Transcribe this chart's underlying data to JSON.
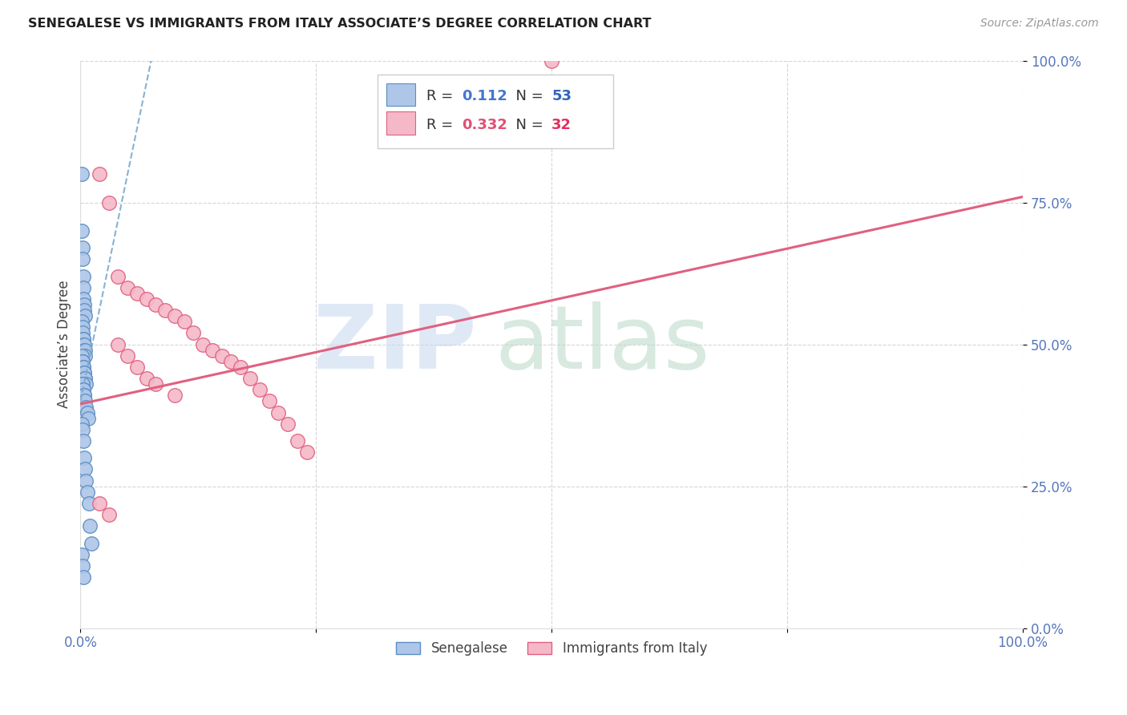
{
  "title": "SENEGALESE VS IMMIGRANTS FROM ITALY ASSOCIATE’S DEGREE CORRELATION CHART",
  "source": "Source: ZipAtlas.com",
  "ylabel": "Associate’s Degree",
  "legend_label1": "Senegalese",
  "legend_label2": "Immigrants from Italy",
  "R1": "0.112",
  "N1": "53",
  "R2": "0.332",
  "N2": "32",
  "color1_fill": "#aec6e8",
  "color1_edge": "#5b8ec4",
  "color2_fill": "#f5b8c8",
  "color2_edge": "#e06080",
  "line1_color": "#7aaad0",
  "line2_color": "#e06080",
  "senegalese_x": [
    0.001,
    0.001,
    0.002,
    0.002,
    0.003,
    0.003,
    0.003,
    0.004,
    0.004,
    0.005,
    0.001,
    0.002,
    0.002,
    0.003,
    0.003,
    0.003,
    0.004,
    0.004,
    0.005,
    0.005,
    0.001,
    0.002,
    0.002,
    0.003,
    0.003,
    0.004,
    0.004,
    0.005,
    0.005,
    0.006,
    0.001,
    0.002,
    0.003,
    0.003,
    0.004,
    0.004,
    0.005,
    0.006,
    0.007,
    0.008,
    0.001,
    0.002,
    0.003,
    0.004,
    0.005,
    0.006,
    0.007,
    0.009,
    0.01,
    0.012,
    0.001,
    0.002,
    0.003
  ],
  "senegalese_y": [
    0.8,
    0.7,
    0.67,
    0.65,
    0.62,
    0.6,
    0.58,
    0.57,
    0.56,
    0.55,
    0.54,
    0.53,
    0.52,
    0.51,
    0.51,
    0.5,
    0.5,
    0.49,
    0.49,
    0.48,
    0.48,
    0.47,
    0.47,
    0.46,
    0.46,
    0.45,
    0.45,
    0.44,
    0.44,
    0.43,
    0.43,
    0.43,
    0.42,
    0.42,
    0.41,
    0.41,
    0.4,
    0.39,
    0.38,
    0.37,
    0.36,
    0.35,
    0.33,
    0.3,
    0.28,
    0.26,
    0.24,
    0.22,
    0.18,
    0.15,
    0.13,
    0.11,
    0.09
  ],
  "italy_x": [
    0.02,
    0.03,
    0.04,
    0.05,
    0.06,
    0.07,
    0.08,
    0.09,
    0.1,
    0.11,
    0.12,
    0.13,
    0.14,
    0.15,
    0.16,
    0.17,
    0.18,
    0.19,
    0.2,
    0.21,
    0.22,
    0.23,
    0.24,
    0.04,
    0.05,
    0.06,
    0.07,
    0.08,
    0.1,
    0.5,
    0.02,
    0.03
  ],
  "italy_y": [
    0.8,
    0.75,
    0.62,
    0.6,
    0.59,
    0.58,
    0.57,
    0.56,
    0.55,
    0.54,
    0.52,
    0.5,
    0.49,
    0.48,
    0.47,
    0.46,
    0.44,
    0.42,
    0.4,
    0.38,
    0.36,
    0.33,
    0.31,
    0.5,
    0.48,
    0.46,
    0.44,
    0.43,
    0.41,
    1.0,
    0.22,
    0.2
  ],
  "xlim": [
    0.0,
    1.0
  ],
  "ylim": [
    0.0,
    1.0
  ],
  "xticks": [
    0.0,
    0.25,
    0.5,
    0.75,
    1.0
  ],
  "yticks": [
    0.0,
    0.25,
    0.5,
    0.75,
    1.0
  ],
  "xtick_labels": [
    "0.0%",
    "",
    "",
    "",
    "100.0%"
  ],
  "ytick_labels": [
    "0.0%",
    "25.0%",
    "50.0%",
    "75.0%",
    "100.0%"
  ]
}
